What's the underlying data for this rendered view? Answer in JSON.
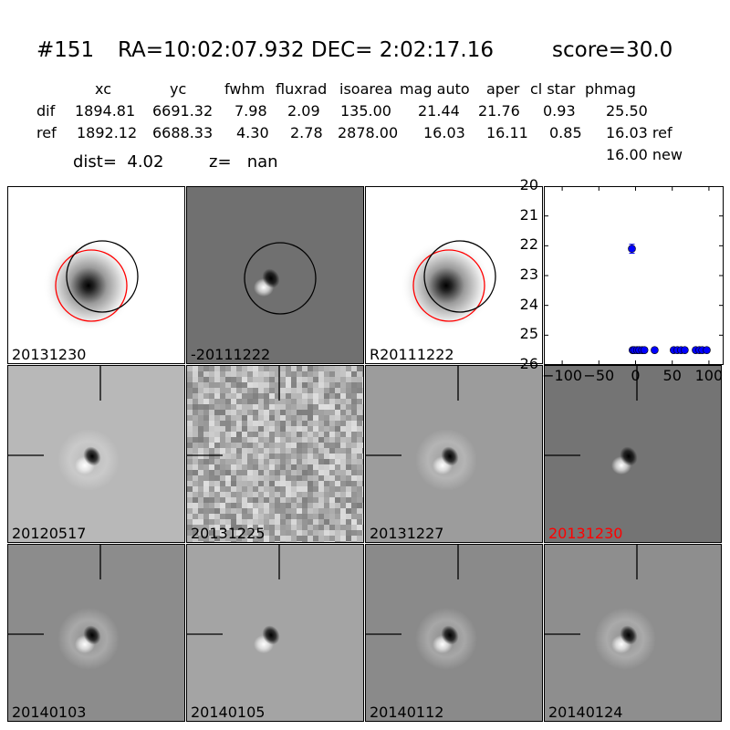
{
  "header": {
    "id": "#151",
    "radec": "RA=10:02:07.932 DEC= 2:02:17.16",
    "score": "score=30.0",
    "columns": [
      "xc",
      "yc",
      "fwhm",
      "fluxrad",
      "isoarea",
      "mag auto",
      "aper",
      "cl star",
      "phmag"
    ],
    "rows": [
      {
        "label": "dif",
        "values": [
          "1894.81",
          "6691.32",
          "7.98",
          "2.09",
          "135.00",
          "21.44",
          "21.76",
          "0.93",
          "25.50"
        ]
      },
      {
        "label": "ref",
        "values": [
          "1892.12",
          "6688.33",
          "4.30",
          "2.78",
          "2878.00",
          "16.03",
          "16.11",
          "0.85",
          "16.03 ref"
        ]
      }
    ],
    "phmag_new": "16.00 new",
    "dist": "dist=  4.02",
    "z": "z=   nan"
  },
  "panels": [
    {
      "label": "20131230",
      "bg": "#ffffff",
      "type": "ref-star",
      "label_color": "#000000"
    },
    {
      "label": "-20111222",
      "bg": "#707070",
      "type": "dipole-circle",
      "label_color": "#000000"
    },
    {
      "label": "R20111222",
      "bg": "#ffffff",
      "type": "ref-star",
      "label_color": "#000000"
    },
    {
      "label": "20120517",
      "bg": "#b8b8b8",
      "type": "dipole-ring",
      "label_color": "#000000"
    },
    {
      "label": "20131225",
      "bg": "#aaaaaa",
      "type": "noise",
      "label_color": "#000000"
    },
    {
      "label": "20131227",
      "bg": "#9c9c9c",
      "type": "dipole-ring",
      "label_color": "#000000"
    },
    {
      "label": "20131230",
      "bg": "#747474",
      "type": "dipole",
      "label_color": "#ff0000"
    },
    {
      "label": "20140103",
      "bg": "#8c8c8c",
      "type": "dipole-ring",
      "label_color": "#000000"
    },
    {
      "label": "20140105",
      "bg": "#a4a4a4",
      "type": "dipole",
      "label_color": "#000000"
    },
    {
      "label": "20140112",
      "bg": "#8a8a8a",
      "type": "dipole-ring",
      "label_color": "#000000"
    },
    {
      "label": "20140124",
      "bg": "#8e8e8e",
      "type": "dipole-ring",
      "label_color": "#000000"
    }
  ],
  "chart_data": {
    "type": "scatter",
    "title": "",
    "xlabel": "",
    "ylabel": "",
    "xlim": [
      -125,
      120
    ],
    "ylim": [
      26,
      20
    ],
    "y_inverted": true,
    "xticks": [
      -100,
      -50,
      0,
      50,
      100
    ],
    "xtick_labels": [
      "−100",
      "−50",
      "0",
      "50",
      "100"
    ],
    "yticks": [
      20,
      21,
      22,
      23,
      24,
      25,
      26
    ],
    "series": [
      {
        "color": "#0000ff",
        "points": [
          {
            "x": -5,
            "y": 22.1,
            "err": 0.15
          },
          {
            "x": -4,
            "y": 25.5
          },
          {
            "x": -2,
            "y": 25.5
          },
          {
            "x": 2,
            "y": 25.5
          },
          {
            "x": 5,
            "y": 25.5
          },
          {
            "x": 9,
            "y": 25.5
          },
          {
            "x": 12,
            "y": 25.5
          },
          {
            "x": 26,
            "y": 25.5
          },
          {
            "x": 52,
            "y": 25.5
          },
          {
            "x": 57,
            "y": 25.5
          },
          {
            "x": 62,
            "y": 25.5
          },
          {
            "x": 67,
            "y": 25.5
          },
          {
            "x": 82,
            "y": 25.5
          },
          {
            "x": 87,
            "y": 25.5
          },
          {
            "x": 91,
            "y": 25.5
          },
          {
            "x": 97,
            "y": 25.5
          }
        ]
      }
    ]
  }
}
